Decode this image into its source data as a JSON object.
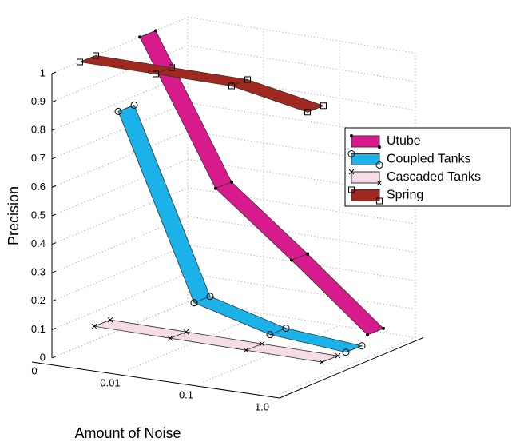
{
  "chart_data": {
    "type": "ribbon3d",
    "ylabel": "Precision",
    "xlabel": "Amount of Noise",
    "categories": [
      "0",
      "0.01",
      "0.1",
      "1.0"
    ],
    "ylim": [
      0,
      1
    ],
    "yticks": [
      0,
      0.1,
      0.2,
      0.3,
      0.4,
      0.5,
      0.6,
      0.7,
      0.8,
      0.9,
      1
    ],
    "grid": true,
    "legend": "right",
    "series": [
      {
        "name": "Utube",
        "color": "#d81b8c",
        "marker": "dot",
        "values": [
          1.0,
          0.51,
          0.3,
          0.08
        ]
      },
      {
        "name": "Coupled Tanks",
        "color": "#1ab2e8",
        "marker": "circle",
        "values": [
          0.77,
          0.14,
          0.07,
          0.05
        ]
      },
      {
        "name": "Cascaded Tanks",
        "color": "#f5dce6",
        "marker": "x",
        "values": [
          0.05,
          0.05,
          0.05,
          0.05
        ]
      },
      {
        "name": "Spring",
        "color": "#a0281e",
        "marker": "square",
        "values": [
          1.0,
          1.0,
          1.0,
          0.95
        ]
      }
    ]
  }
}
